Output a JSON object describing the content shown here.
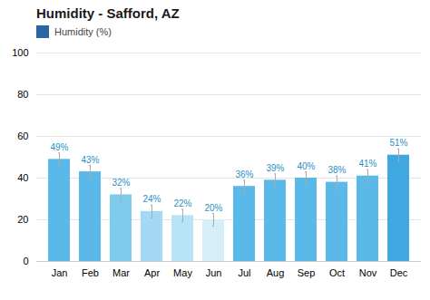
{
  "chart_data": {
    "type": "bar",
    "title": "Humidity - Safford, AZ",
    "categories": [
      "Jan",
      "Feb",
      "Mar",
      "Apr",
      "May",
      "Jun",
      "Jul",
      "Aug",
      "Sep",
      "Oct",
      "Nov",
      "Dec"
    ],
    "series": [
      {
        "name": "Humidity (%)",
        "color": "#2966a3",
        "values": [
          49,
          43,
          32,
          24,
          22,
          20,
          36,
          39,
          40,
          38,
          41,
          51
        ],
        "value_labels": [
          "49%",
          "43%",
          "32%",
          "24%",
          "22%",
          "20%",
          "36%",
          "39%",
          "40%",
          "38%",
          "41%",
          "51%"
        ],
        "errors": [
          3,
          3,
          3,
          3,
          3,
          3,
          3,
          3,
          3,
          3,
          3,
          3
        ],
        "colors": [
          "#5ab9e8",
          "#5ab9e8",
          "#7ecbee",
          "#a3d9f5",
          "#b8e4f8",
          "#d4eefa",
          "#5ab9e8",
          "#5ab9e8",
          "#5ab9e8",
          "#5ab9e8",
          "#5ab9e8",
          "#3fa8e0"
        ]
      }
    ],
    "ylim": [
      0,
      100
    ],
    "yticks": [
      0,
      20,
      40,
      60,
      80,
      100
    ],
    "grid": true,
    "legend": "top",
    "data_labels": true
  }
}
